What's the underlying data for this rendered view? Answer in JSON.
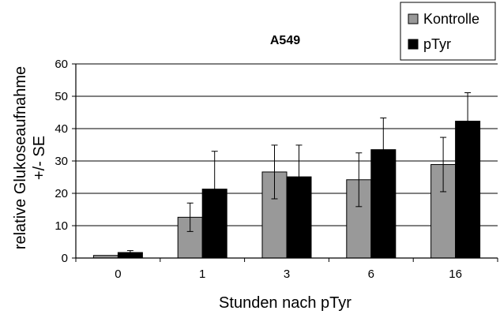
{
  "chart_data": {
    "type": "bar",
    "title": "A549",
    "xlabel": "Stunden nach pTyr",
    "ylabel_lines": [
      "relative Glukoseaufnahme",
      "+/- SE"
    ],
    "ylim": [
      0,
      60
    ],
    "yticks": [
      "0",
      "10",
      "20",
      "30",
      "40",
      "50",
      "60"
    ],
    "grid": true,
    "legend_position": "top-right",
    "categories": [
      "0",
      "1",
      "3",
      "6",
      "16"
    ],
    "series": [
      {
        "name": "Kontrolle",
        "color": "#999999",
        "values": [
          0.8,
          12.6,
          26.6,
          24.2,
          28.9
        ],
        "error": [
          0.0,
          4.4,
          8.3,
          8.3,
          8.4
        ]
      },
      {
        "name": "pTyr",
        "color": "#000000",
        "values": [
          1.7,
          21.3,
          25.1,
          33.5,
          42.3
        ],
        "error": [
          0.6,
          11.7,
          9.8,
          9.8,
          8.8
        ]
      }
    ]
  }
}
